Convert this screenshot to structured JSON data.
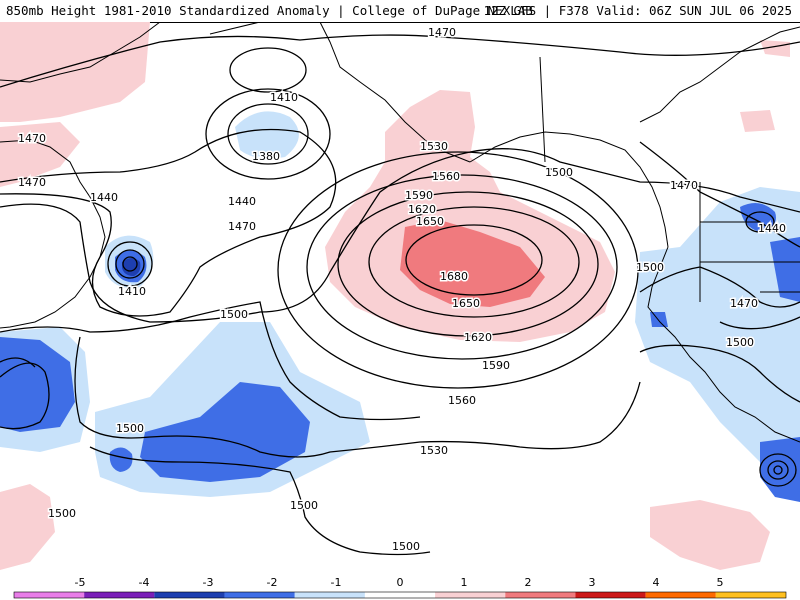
{
  "header": {
    "title_left": "850mb Height 1981-2010 Standardized Anomaly | College of DuPage NEXLAB",
    "title_right": "12Z GFS | F378 Valid: 06Z SUN JUL 06 2025"
  },
  "colors": {
    "anomaly_scale": [
      {
        "level": "-5",
        "color": "#e87de8"
      },
      {
        "level": "-4",
        "color": "#7a1fb8"
      },
      {
        "level": "-3",
        "color": "#1e3fb0"
      },
      {
        "level": "-2",
        "color": "#3f6ee6"
      },
      {
        "level": "-1",
        "color": "#c8e2fa"
      },
      {
        "level": "0",
        "color": "#ffffff"
      },
      {
        "level": "1",
        "color": "#f9d0d3"
      },
      {
        "level": "2",
        "color": "#f07a7e"
      },
      {
        "level": "3",
        "color": "#cc1818"
      },
      {
        "level": "4",
        "color": "#ff6a00"
      },
      {
        "level": "5",
        "color": "#ffc020"
      }
    ],
    "coastline": "#000000",
    "contour": "#000000"
  },
  "contour_labels": [
    {
      "id": "c1470-n",
      "text": "1470"
    },
    {
      "id": "c1410-a",
      "text": "1410"
    },
    {
      "id": "c1380",
      "text": "1380"
    },
    {
      "id": "c1470-w1",
      "text": "1470"
    },
    {
      "id": "c1470-w2",
      "text": "1470"
    },
    {
      "id": "c1440-w",
      "text": "1440"
    },
    {
      "id": "c1440-c",
      "text": "1440"
    },
    {
      "id": "c1470-c",
      "text": "1470"
    },
    {
      "id": "c1410-b",
      "text": "1410"
    },
    {
      "id": "c1500-c",
      "text": "1500"
    },
    {
      "id": "c1530-a",
      "text": "1530"
    },
    {
      "id": "c1560",
      "text": "1560"
    },
    {
      "id": "c1590",
      "text": "1590"
    },
    {
      "id": "c1620",
      "text": "1620"
    },
    {
      "id": "c1650",
      "text": "1650"
    },
    {
      "id": "c1680",
      "text": "1680"
    },
    {
      "id": "c1650-b",
      "text": "1650"
    },
    {
      "id": "c1620-b",
      "text": "1620"
    },
    {
      "id": "c1590-b",
      "text": "1590"
    },
    {
      "id": "c1560-b",
      "text": "1560"
    },
    {
      "id": "c1530-b",
      "text": "1530"
    },
    {
      "id": "c1500-ne",
      "text": "1500"
    },
    {
      "id": "c1470-ne",
      "text": "1470"
    },
    {
      "id": "c1440-e",
      "text": "1440"
    },
    {
      "id": "c1500-e",
      "text": "1500"
    },
    {
      "id": "c1470-e",
      "text": "1470"
    },
    {
      "id": "c1500-se",
      "text": "1500"
    },
    {
      "id": "c1500-sw1",
      "text": "1500"
    },
    {
      "id": "c1500-sw2",
      "text": "1500"
    },
    {
      "id": "c1500-s",
      "text": "1500"
    },
    {
      "id": "c1500-s2",
      "text": "1500"
    }
  ],
  "colorbar": {
    "ticks": [
      "-5",
      "-4",
      "-3",
      "-2",
      "-1",
      "0",
      "1",
      "2",
      "3",
      "4",
      "5"
    ]
  }
}
